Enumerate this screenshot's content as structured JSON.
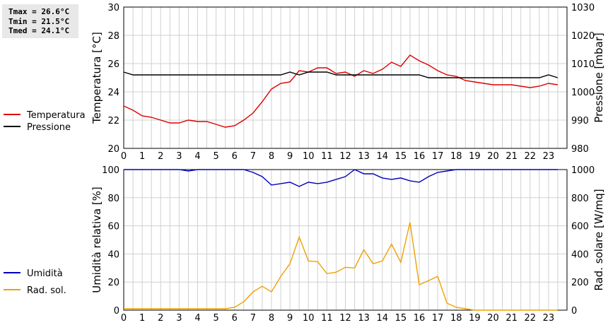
{
  "stats": {
    "tmax": "Tmax = 26.6°C",
    "tmin": "Tmin = 21.5°C",
    "tmed": "Tmed = 24.1°C"
  },
  "colors": {
    "temperature": "#dd0000",
    "pressure": "#000000",
    "humidity": "#0000bb",
    "radiation": "#f0a000",
    "grid": "#d0d0d0"
  },
  "chart_data": [
    {
      "type": "line",
      "ylabel": "Temperatura [°C]",
      "y2label": "Pressione [mbar]",
      "ylim": [
        20,
        30
      ],
      "y2lim": [
        980,
        1030
      ],
      "yticks": [
        "20",
        "22",
        "24",
        "26",
        "28",
        "30"
      ],
      "y2ticks": [
        "980",
        "990",
        "1000",
        "1010",
        "1020",
        "1030"
      ],
      "xticks": [
        "0",
        "1",
        "2",
        "3",
        "4",
        "5",
        "6",
        "7",
        "8",
        "9",
        "10",
        "11",
        "12",
        "13",
        "14",
        "15",
        "16",
        "17",
        "18",
        "19",
        "20",
        "21",
        "22",
        "23"
      ],
      "grid": true,
      "legend_position": "left",
      "series": [
        {
          "name": "Temperatura",
          "axis": "left",
          "color": "#dd0000",
          "x": [
            0,
            0.5,
            1,
            1.5,
            2,
            2.5,
            3,
            3.5,
            4,
            4.5,
            5,
            5.5,
            6,
            6.5,
            7,
            7.5,
            8,
            8.5,
            9,
            9.5,
            10,
            10.5,
            11,
            11.5,
            12,
            12.5,
            13,
            13.5,
            14,
            14.5,
            15,
            15.5,
            16,
            16.5,
            17,
            17.5,
            18,
            18.5,
            19,
            19.5,
            20,
            20.5,
            21,
            21.5,
            22,
            22.5,
            23,
            23.5
          ],
          "values": [
            23.0,
            22.7,
            22.3,
            22.2,
            22.0,
            21.8,
            21.8,
            22.0,
            21.9,
            21.9,
            21.7,
            21.5,
            21.6,
            22.0,
            22.5,
            23.3,
            24.2,
            24.6,
            24.7,
            25.5,
            25.4,
            25.7,
            25.7,
            25.3,
            25.4,
            25.1,
            25.5,
            25.3,
            25.6,
            26.1,
            25.8,
            26.6,
            26.2,
            25.9,
            25.5,
            25.2,
            25.1,
            24.8,
            24.7,
            24.6,
            24.5,
            24.5,
            24.5,
            24.4,
            24.3,
            24.4,
            24.6,
            24.5
          ]
        },
        {
          "name": "Pressione",
          "axis": "right",
          "color": "#000000",
          "x": [
            0,
            0.5,
            1,
            1.5,
            2,
            2.5,
            3,
            3.5,
            4,
            4.5,
            5,
            5.5,
            6,
            6.5,
            7,
            7.5,
            8,
            8.5,
            9,
            9.5,
            10,
            10.5,
            11,
            11.5,
            12,
            12.5,
            13,
            13.5,
            14,
            14.5,
            15,
            15.5,
            16,
            16.5,
            17,
            17.5,
            18,
            18.5,
            19,
            19.5,
            20,
            20.5,
            21,
            21.5,
            22,
            22.5,
            23,
            23.5
          ],
          "values": [
            1007,
            1006,
            1006,
            1006,
            1006,
            1006,
            1006,
            1006,
            1006,
            1006,
            1006,
            1006,
            1006,
            1006,
            1006,
            1006,
            1006,
            1006,
            1007,
            1006,
            1007,
            1007,
            1007,
            1006,
            1006,
            1006,
            1006,
            1006,
            1006,
            1006,
            1006,
            1006,
            1006,
            1005,
            1005,
            1005,
            1005,
            1005,
            1005,
            1005,
            1005,
            1005,
            1005,
            1005,
            1005,
            1005,
            1006,
            1005
          ]
        }
      ]
    },
    {
      "type": "line",
      "ylabel": "Umidità relativa [%]",
      "y2label": "Rad. solare [W/mq]",
      "ylim": [
        0,
        100
      ],
      "y2lim": [
        0,
        1000
      ],
      "yticks": [
        "0",
        "20",
        "40",
        "60",
        "80",
        "100"
      ],
      "y2ticks": [
        "0",
        "200",
        "400",
        "600",
        "800",
        "1000"
      ],
      "xticks": [
        "0",
        "1",
        "2",
        "3",
        "4",
        "5",
        "6",
        "7",
        "8",
        "9",
        "10",
        "11",
        "12",
        "13",
        "14",
        "15",
        "16",
        "17",
        "18",
        "19",
        "20",
        "21",
        "22",
        "23"
      ],
      "grid": true,
      "legend_position": "left",
      "series": [
        {
          "name": "Umidità",
          "axis": "left",
          "color": "#0000bb",
          "x": [
            0,
            0.5,
            1,
            1.5,
            2,
            2.5,
            3,
            3.5,
            4,
            4.5,
            5,
            5.5,
            6,
            6.5,
            7,
            7.5,
            8,
            8.5,
            9,
            9.5,
            10,
            10.5,
            11,
            11.5,
            12,
            12.5,
            13,
            13.5,
            14,
            14.5,
            15,
            15.5,
            16,
            16.5,
            17,
            17.5,
            18,
            18.5,
            19,
            19.5,
            20,
            20.5,
            21,
            21.5,
            22,
            22.5,
            23,
            23.5
          ],
          "values": [
            100,
            100,
            100,
            100,
            100,
            100,
            100,
            99,
            100,
            100,
            100,
            100,
            100,
            100,
            98,
            95,
            89,
            90,
            91,
            88,
            91,
            90,
            91,
            93,
            95,
            100,
            97,
            97,
            94,
            93,
            94,
            92,
            91,
            95,
            98,
            99,
            100,
            100,
            100,
            100,
            100,
            100,
            100,
            100,
            100,
            100,
            100,
            100
          ]
        },
        {
          "name": "Rad. sol.",
          "axis": "right",
          "color": "#f0a000",
          "x": [
            0,
            0.5,
            1,
            1.5,
            2,
            2.5,
            3,
            3.5,
            4,
            4.5,
            5,
            5.5,
            6,
            6.5,
            7,
            7.5,
            8,
            8.5,
            9,
            9.5,
            10,
            10.5,
            11,
            11.5,
            12,
            12.5,
            13,
            13.5,
            14,
            14.5,
            15,
            15.5,
            16,
            16.5,
            17,
            17.5,
            18,
            18.5,
            19,
            19.5,
            20,
            20.5,
            21,
            21.5,
            22,
            22.5,
            23,
            23.5
          ],
          "values": [
            10,
            10,
            10,
            10,
            10,
            10,
            10,
            10,
            10,
            10,
            10,
            10,
            20,
            60,
            130,
            170,
            130,
            240,
            330,
            520,
            350,
            345,
            260,
            270,
            305,
            300,
            430,
            330,
            350,
            470,
            340,
            625,
            180,
            210,
            240,
            50,
            20,
            10,
            0,
            0,
            0,
            0,
            0,
            0,
            0,
            0,
            0,
            0
          ]
        }
      ]
    }
  ]
}
